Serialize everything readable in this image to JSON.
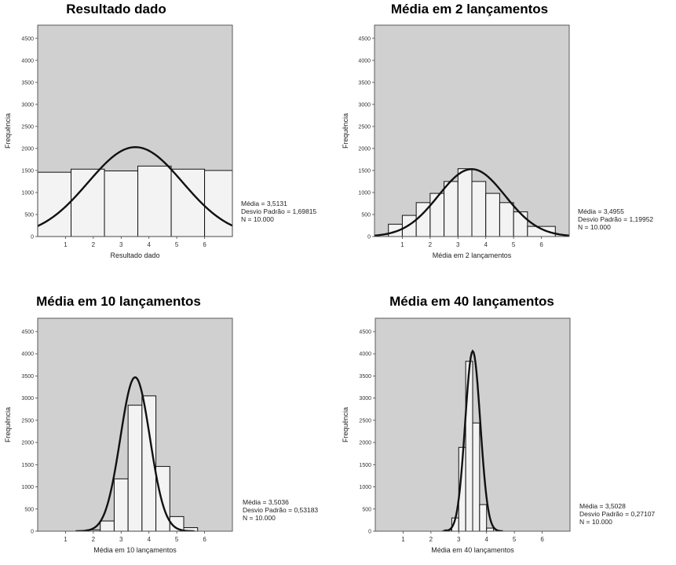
{
  "chart_data": [
    {
      "type": "bar",
      "title": "Resultado dado",
      "xlabel": "Resultado dado",
      "ylabel": "Frequência",
      "ylim": [
        0,
        4800
      ],
      "xlim": [
        0,
        7
      ],
      "yticks": [
        "0",
        "500",
        "1000",
        "1500",
        "2000",
        "2500",
        "3000",
        "3500",
        "4000",
        "4500"
      ],
      "xticks": [
        "1",
        "2",
        "3",
        "4",
        "5",
        "6"
      ],
      "bins": [
        {
          "from": 0.0,
          "to": 1.2,
          "value": 1460
        },
        {
          "from": 1.2,
          "to": 2.4,
          "value": 1530
        },
        {
          "from": 2.4,
          "to": 3.6,
          "value": 1490
        },
        {
          "from": 3.6,
          "to": 4.8,
          "value": 1600
        },
        {
          "from": 4.8,
          "to": 6.0,
          "value": 1530
        },
        {
          "from": 6.0,
          "to": 7.0,
          "value": 1500
        }
      ],
      "curve": {
        "mean": 3.5131,
        "sd": 1.69815,
        "peak": 2030
      },
      "stats": [
        "Média = 3,5131",
        "Desvio Padrão = 1,69815",
        "N = 10.000"
      ]
    },
    {
      "type": "bar",
      "title": "Média em 2 lançamentos",
      "xlabel": "Média em 2 lançamentos",
      "ylabel": "Frequência",
      "ylim": [
        0,
        4800
      ],
      "xlim": [
        0,
        7
      ],
      "yticks": [
        "0",
        "500",
        "1000",
        "1500",
        "2000",
        "2500",
        "3000",
        "3500",
        "4000",
        "4500"
      ],
      "xticks": [
        "1",
        "2",
        "3",
        "4",
        "5",
        "6"
      ],
      "bins": [
        {
          "from": 0.5,
          "to": 1.0,
          "value": 280
        },
        {
          "from": 1.0,
          "to": 1.5,
          "value": 480
        },
        {
          "from": 1.5,
          "to": 2.0,
          "value": 770
        },
        {
          "from": 2.0,
          "to": 2.5,
          "value": 980
        },
        {
          "from": 2.5,
          "to": 3.0,
          "value": 1250
        },
        {
          "from": 3.0,
          "to": 3.5,
          "value": 1540
        },
        {
          "from": 3.5,
          "to": 4.0,
          "value": 1250
        },
        {
          "from": 4.0,
          "to": 4.5,
          "value": 980
        },
        {
          "from": 4.5,
          "to": 5.0,
          "value": 770
        },
        {
          "from": 5.0,
          "to": 5.5,
          "value": 560
        },
        {
          "from": 5.5,
          "to": 6.5,
          "value": 230
        }
      ],
      "curve": {
        "mean": 3.4955,
        "sd": 1.19952,
        "peak": 1530
      },
      "stats": [
        "Média = 3,4955",
        "Desvio Padrão = 1,19952",
        "N = 10.000"
      ]
    },
    {
      "type": "bar",
      "title": "Média em 10 lançamentos",
      "xlabel": "Média em 10 lançamentos",
      "ylabel": "Frequência",
      "ylim": [
        0,
        4800
      ],
      "xlim": [
        0,
        7
      ],
      "yticks": [
        "0",
        "500",
        "1000",
        "1500",
        "2000",
        "2500",
        "3000",
        "3500",
        "4000",
        "4500"
      ],
      "xticks": [
        "1",
        "2",
        "3",
        "4",
        "5",
        "6"
      ],
      "bins": [
        {
          "from": 1.75,
          "to": 2.25,
          "value": 30
        },
        {
          "from": 2.25,
          "to": 2.75,
          "value": 230
        },
        {
          "from": 2.75,
          "to": 3.25,
          "value": 1180
        },
        {
          "from": 3.25,
          "to": 3.75,
          "value": 2840
        },
        {
          "from": 3.75,
          "to": 4.25,
          "value": 3050
        },
        {
          "from": 4.25,
          "to": 4.75,
          "value": 1460
        },
        {
          "from": 4.75,
          "to": 5.25,
          "value": 330
        },
        {
          "from": 5.25,
          "to": 5.75,
          "value": 80
        }
      ],
      "curve": {
        "mean": 3.5036,
        "sd": 0.53183,
        "peak": 3470
      },
      "stats": [
        "Média = 3,5036",
        "Desvio Padrão = 0,53183",
        "N = 10.000"
      ]
    },
    {
      "type": "bar",
      "title": "Média em 40 lançamentos",
      "xlabel": "Média em 40 lançamentos",
      "ylabel": "Frequência",
      "ylim": [
        0,
        4800
      ],
      "xlim": [
        0,
        7
      ],
      "yticks": [
        "0",
        "500",
        "1000",
        "1500",
        "2000",
        "2500",
        "3000",
        "3500",
        "4000",
        "4500"
      ],
      "xticks": [
        "1",
        "2",
        "3",
        "4",
        "5",
        "6"
      ],
      "bins": [
        {
          "from": 2.5,
          "to": 2.75,
          "value": 30
        },
        {
          "from": 2.75,
          "to": 3.0,
          "value": 300
        },
        {
          "from": 3.0,
          "to": 3.25,
          "value": 1890
        },
        {
          "from": 3.25,
          "to": 3.5,
          "value": 3830
        },
        {
          "from": 3.5,
          "to": 3.75,
          "value": 2440
        },
        {
          "from": 3.75,
          "to": 4.0,
          "value": 600
        },
        {
          "from": 4.0,
          "to": 4.25,
          "value": 70
        }
      ],
      "curve": {
        "mean": 3.5028,
        "sd": 0.27107,
        "peak": 4060
      },
      "stats": [
        "Média = 3,5028",
        "Desvio Padrão = 0,27107",
        "N = 10.000"
      ]
    }
  ],
  "colors": {
    "plot_background": "#d0d0d0",
    "bar_fill": "#f3f3f3",
    "bar_stroke": "#111111",
    "curve": "#111111"
  }
}
